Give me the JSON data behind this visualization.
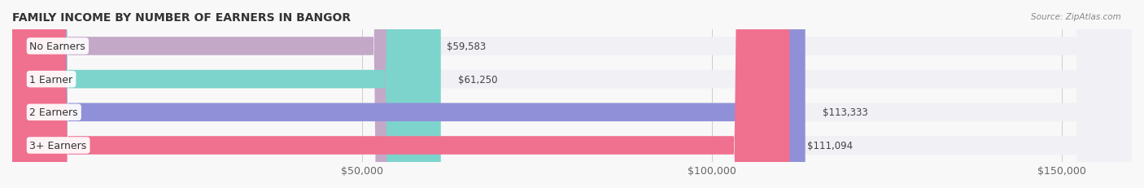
{
  "title": "FAMILY INCOME BY NUMBER OF EARNERS IN BANGOR",
  "source": "Source: ZipAtlas.com",
  "categories": [
    "No Earners",
    "1 Earner",
    "2 Earners",
    "3+ Earners"
  ],
  "values": [
    59583,
    61250,
    113333,
    111094
  ],
  "bar_colors": [
    "#c4a8c8",
    "#7dd4cc",
    "#9090d8",
    "#f07090"
  ],
  "bar_bg_color": "#f0f0f5",
  "value_labels": [
    "$59,583",
    "$61,250",
    "$113,333",
    "$111,094"
  ],
  "xlim": [
    0,
    160000
  ],
  "xticks": [
    50000,
    100000,
    150000
  ],
  "xtick_labels": [
    "$50,000",
    "$100,000",
    "$150,000"
  ],
  "label_fontsize": 9,
  "title_fontsize": 10,
  "value_fontsize": 8.5,
  "background_color": "#f8f8f8"
}
